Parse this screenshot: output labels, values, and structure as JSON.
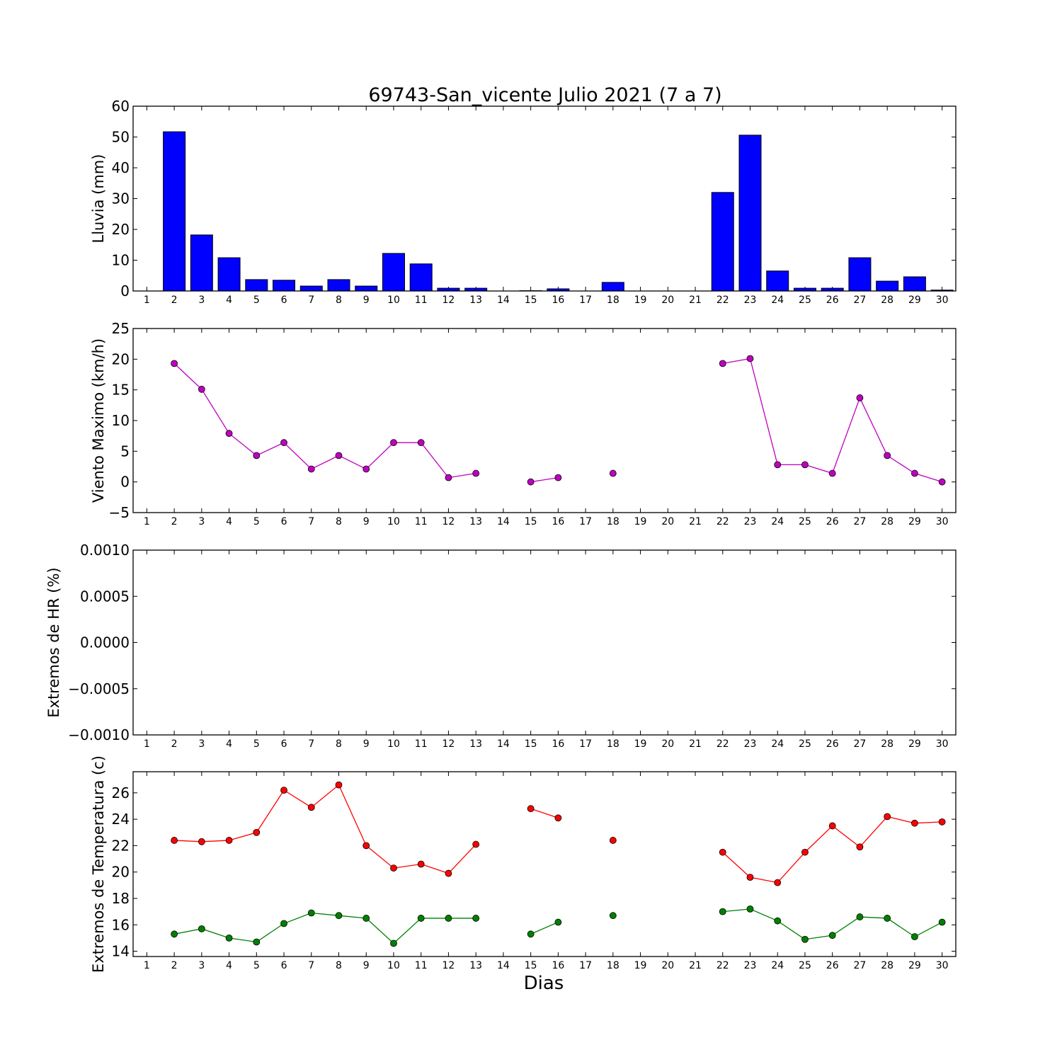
{
  "chart_data": {
    "title": "69743-San_vicente Julio 2021  (7 a 7)",
    "xlabel": "Dias",
    "x_categories": [
      "1",
      "2",
      "3",
      "4",
      "5",
      "6",
      "7",
      "8",
      "9",
      "10",
      "11",
      "12",
      "13",
      "14",
      "15",
      "16",
      "17",
      "18",
      "19",
      "20",
      "21",
      "22",
      "23",
      "24",
      "25",
      "26",
      "27",
      "28",
      "29",
      "30"
    ],
    "panels": [
      {
        "type": "bar",
        "ylabel": "Lluvia (mm)",
        "ylim": [
          0,
          60
        ],
        "yticks": [
          0,
          10,
          20,
          30,
          40,
          50,
          60
        ],
        "ytick_labels": [
          "0",
          "10",
          "20",
          "30",
          "40",
          "50",
          "60"
        ],
        "series": [
          {
            "color": "#0000ff",
            "values": [
              0,
              51.7,
              18.2,
              10.8,
              3.7,
              3.5,
              1.6,
              3.7,
              1.6,
              12.2,
              8.8,
              0.9,
              0.9,
              0,
              0.1,
              0.7,
              0,
              2.8,
              0,
              0,
              0,
              32,
              50.6,
              6.5,
              0.9,
              0.9,
              10.8,
              3.2,
              4.6,
              0.3
            ]
          }
        ]
      },
      {
        "type": "line",
        "ylabel": "Viento Maximo (km/h)",
        "ylim": [
          -5,
          25
        ],
        "yticks": [
          -5,
          0,
          5,
          10,
          15,
          20,
          25
        ],
        "ytick_labels": [
          "−5",
          "0",
          "5",
          "10",
          "15",
          "20",
          "25"
        ],
        "series": [
          {
            "color": "#bf00bf",
            "values": [
              null,
              19.3,
              15.1,
              7.9,
              4.3,
              6.4,
              2.1,
              4.3,
              2.1,
              6.4,
              6.4,
              0.7,
              1.4,
              null,
              0,
              0.7,
              null,
              1.4,
              null,
              null,
              null,
              19.3,
              20.1,
              2.8,
              2.8,
              1.4,
              13.7,
              4.3,
              1.4,
              0
            ]
          }
        ]
      },
      {
        "type": "line",
        "ylabel": "Extremos de HR (%)",
        "ylim": [
          -0.001,
          0.001
        ],
        "yticks": [
          -0.001,
          -0.0005,
          0,
          0.0005,
          0.001
        ],
        "ytick_labels": [
          "−0.0010",
          "−0.0005",
          "0.0000",
          "0.0005",
          "0.0010"
        ],
        "series": []
      },
      {
        "type": "line",
        "ylabel": "Extremos de Temperatura (c)",
        "ylim": [
          13.6,
          27.6
        ],
        "yticks": [
          14,
          16,
          18,
          20,
          22,
          24,
          26
        ],
        "ytick_labels": [
          "14",
          "16",
          "18",
          "20",
          "22",
          "24",
          "26"
        ],
        "series": [
          {
            "color": "#ff0000",
            "values": [
              null,
              22.4,
              22.3,
              22.4,
              23.0,
              26.2,
              24.9,
              26.6,
              22.0,
              20.3,
              20.6,
              19.9,
              22.1,
              null,
              24.8,
              24.1,
              null,
              22.4,
              null,
              null,
              null,
              21.5,
              19.6,
              19.2,
              21.5,
              23.5,
              21.9,
              24.2,
              23.7,
              23.8
            ]
          },
          {
            "color": "#008000",
            "values": [
              null,
              15.3,
              15.7,
              15.0,
              14.7,
              16.1,
              16.9,
              16.7,
              16.5,
              14.6,
              16.5,
              16.5,
              16.5,
              null,
              15.3,
              16.2,
              null,
              16.7,
              null,
              null,
              null,
              17.0,
              17.2,
              16.3,
              14.9,
              15.2,
              16.6,
              16.5,
              15.1,
              16.2
            ]
          }
        ]
      }
    ]
  }
}
